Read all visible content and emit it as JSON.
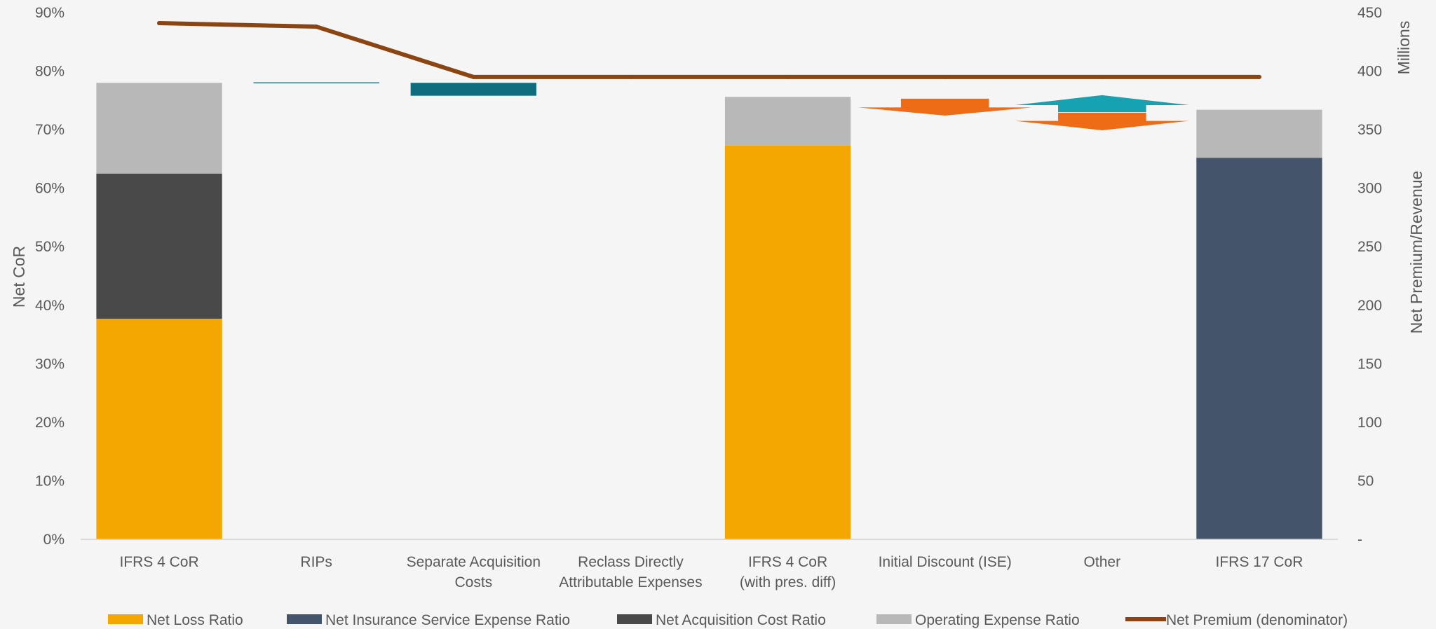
{
  "chart_data": {
    "type": "bar",
    "categories": [
      [
        "IFRS 4 CoR"
      ],
      [
        "RIPs"
      ],
      [
        "Separate Acquisition",
        "Costs"
      ],
      [
        "Reclass Directly",
        "Attributable Expenses"
      ],
      [
        "IFRS 4 CoR",
        "(with pres. diff)"
      ],
      [
        "Initial Discount (ISE)"
      ],
      [
        "Other"
      ],
      [
        "IFRS 17 CoR"
      ]
    ],
    "ylabel": "Net CoR",
    "y2label": "Net Premium/Revenue",
    "y2unit": "Millions",
    "ylim": [
      0,
      90
    ],
    "y2lim": [
      0,
      450
    ],
    "yticks": [
      "0%",
      "10%",
      "20%",
      "30%",
      "40%",
      "50%",
      "60%",
      "70%",
      "80%",
      "90%"
    ],
    "y2ticks": [
      "-",
      "50",
      "100",
      "150",
      "200",
      "250",
      "300",
      "350",
      "400",
      "450"
    ],
    "colors": {
      "net_loss": "#F4A700",
      "net_ise": "#44546A",
      "net_acq": "#494949",
      "opex": "#B8B8B8",
      "premium": "#8B4513",
      "rips": "#1F8A9E",
      "sep_acq": "#0E6E7E",
      "decrease": "#EE6C16",
      "increase": "#16A2B0",
      "axis": "#D0D0D0"
    },
    "stacked": [
      {
        "category_index": 0,
        "segments": [
          {
            "series": "Net Loss Ratio",
            "from": 0,
            "to": 37.7
          },
          {
            "series": "Net Acquisition Cost Ratio",
            "from": 37.7,
            "to": 62.5
          },
          {
            "series": "Operating Expense Ratio",
            "from": 62.5,
            "to": 78.0
          }
        ]
      },
      {
        "category_index": 4,
        "segments": [
          {
            "series": "Net Loss Ratio",
            "from": 0,
            "to": 67.3
          },
          {
            "series": "Operating Expense Ratio",
            "from": 67.3,
            "to": 75.6
          }
        ]
      },
      {
        "category_index": 7,
        "segments": [
          {
            "series": "Net Insurance Service Expense Ratio",
            "from": 0,
            "to": 65.2
          },
          {
            "series": "Operating Expense Ratio",
            "from": 65.2,
            "to": 73.4
          }
        ]
      }
    ],
    "waterfall": [
      {
        "category_index": 1,
        "from": 78.0,
        "to": 78.1,
        "color": "rips"
      },
      {
        "category_index": 2,
        "from": 78.0,
        "to": 75.8,
        "color": "sep_acq"
      }
    ],
    "arrows": [
      {
        "category_index": 5,
        "direction": "down",
        "top": 75.3,
        "head_top": 73.8,
        "tip": 72.4,
        "color": "decrease"
      },
      {
        "category_index": 6,
        "direction": "up",
        "base": 73.0,
        "head_base": 74.2,
        "tip": 75.9,
        "color": "increase"
      },
      {
        "category_index": 6,
        "direction": "down",
        "top": 72.9,
        "head_top": 71.5,
        "tip": 69.9,
        "color": "decrease"
      }
    ],
    "line_series": {
      "name": "Net Premium (denominator)",
      "axis": "right",
      "values": [
        441,
        438,
        395,
        395,
        395,
        395,
        395,
        395
      ]
    },
    "legend": [
      {
        "label": "Net Loss Ratio",
        "kind": "box",
        "color": "net_loss"
      },
      {
        "label": "Net Insurance Service Expense Ratio",
        "kind": "box",
        "color": "net_ise"
      },
      {
        "label": "Net Acquisition Cost Ratio",
        "kind": "box",
        "color": "net_acq"
      },
      {
        "label": "Operating Expense Ratio",
        "kind": "box",
        "color": "opex"
      },
      {
        "label": "Net Premium (denominator)",
        "kind": "line",
        "color": "premium"
      }
    ],
    "legend_position": "bottom",
    "grid": false
  }
}
